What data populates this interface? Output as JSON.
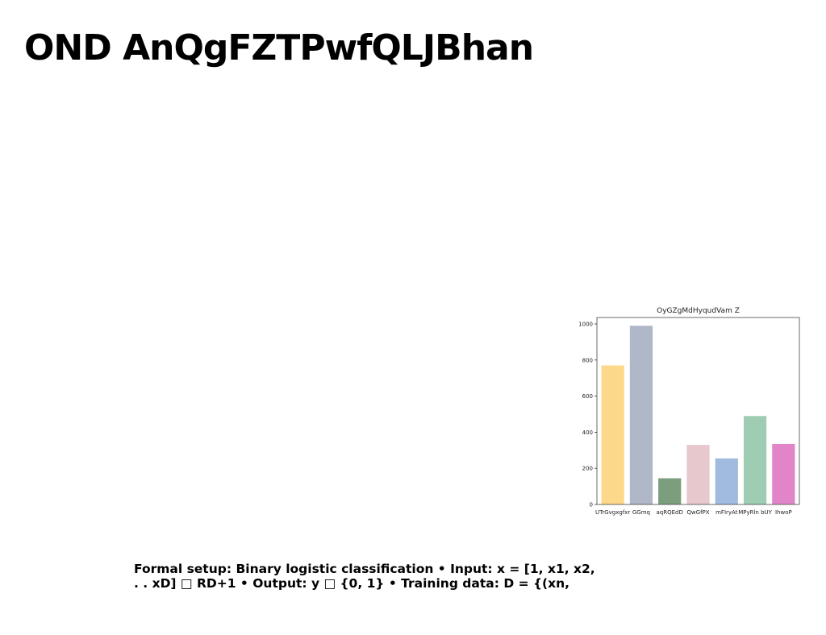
{
  "slide": {
    "title": "OND AnQgFZTPwfQLJBhan",
    "body_lines": [
      "Formal setup: Binary logistic classification • Input: x = [1, x1, x2,",
      ". . xD] □ RD+1 • Output: y □ {0, 1} • Training data: D = {(xn,"
    ]
  },
  "chart_data": {
    "type": "bar",
    "title": "OyGZgMdHyqudVam Z",
    "xlabel": "",
    "ylabel": "",
    "categories": [
      "UTrGvgxgfxr",
      "GGmq",
      "aqRQEdD",
      "QwGfPX",
      "mFIryAt",
      "MPyRln bUY",
      "IhwoP"
    ],
    "values": [
      770,
      990,
      145,
      330,
      255,
      490,
      335
    ],
    "ylim": [
      0,
      1000
    ],
    "yticks": [
      0,
      200,
      400,
      600,
      800,
      1000
    ],
    "grid": false,
    "colors": [
      "#fcd98a",
      "#b0b7c8",
      "#7c9e7c",
      "#e6c8cd",
      "#a0bae0",
      "#9ecdb3",
      "#e185c8"
    ]
  }
}
